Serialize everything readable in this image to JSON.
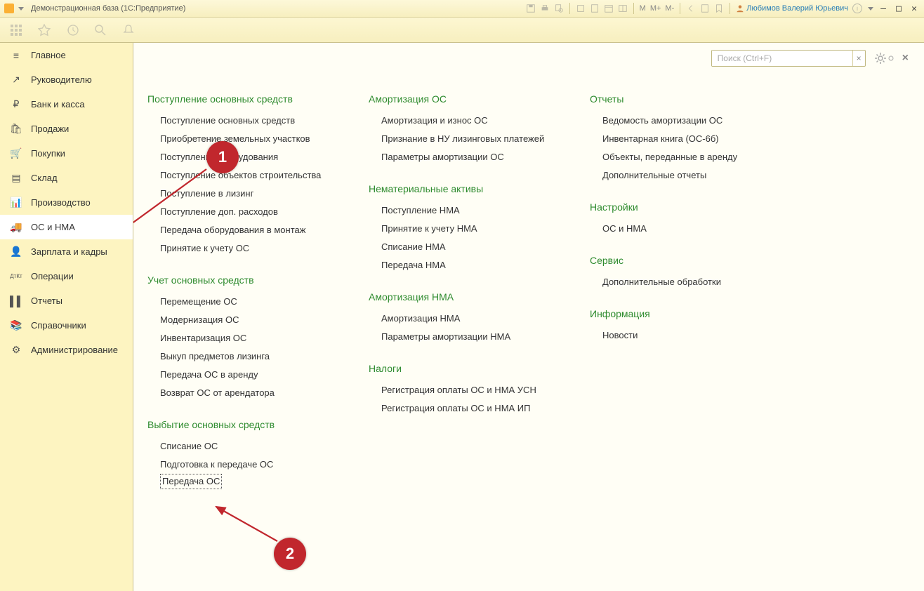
{
  "window": {
    "title": "Демонстрационная база  (1С:Предприятие)",
    "user": "Любимов Валерий Юрьевич",
    "m_items": [
      "M",
      "M+",
      "M-"
    ]
  },
  "toolbar_icons": [
    "grid",
    "star",
    "history",
    "search",
    "bell"
  ],
  "search": {
    "placeholder": "Поиск (Ctrl+F)"
  },
  "sidebar": [
    {
      "icon": "≡",
      "label": "Главное"
    },
    {
      "icon": "↗",
      "label": "Руководителю"
    },
    {
      "icon": "₽",
      "label": "Банк и касса"
    },
    {
      "icon": "🛍",
      "label": "Продажи"
    },
    {
      "icon": "🛒",
      "label": "Покупки"
    },
    {
      "icon": "▤",
      "label": "Склад"
    },
    {
      "icon": "📊",
      "label": "Производство"
    },
    {
      "icon": "🚚",
      "label": "ОС и НМА",
      "active": true
    },
    {
      "icon": "👤",
      "label": "Зарплата и кадры"
    },
    {
      "icon": "ДтКт",
      "label": "Операции"
    },
    {
      "icon": "▌▌",
      "label": "Отчеты"
    },
    {
      "icon": "📚",
      "label": "Справочники"
    },
    {
      "icon": "⚙",
      "label": "Администрирование"
    }
  ],
  "col1": [
    {
      "title": "Поступление основных средств",
      "links": [
        "Поступление основных средств",
        "Приобретение земельных участков",
        "Поступление оборудования",
        "Поступление объектов строительства",
        "Поступление в лизинг",
        "Поступление доп. расходов",
        "Передача оборудования в монтаж",
        "Принятие к учету ОС"
      ]
    },
    {
      "title": "Учет основных средств",
      "links": [
        "Перемещение ОС",
        "Модернизация ОС",
        "Инвентаризация ОС",
        "Выкуп предметов лизинга",
        "Передача ОС в аренду",
        "Возврат ОС от арендатора"
      ]
    },
    {
      "title": "Выбытие основных средств",
      "links": [
        "Списание ОС",
        "Подготовка к передаче ОС",
        "Передача ОС"
      ]
    }
  ],
  "col2": [
    {
      "title": "Амортизация ОС",
      "links": [
        "Амортизация и износ ОС",
        "Признание в НУ лизинговых платежей",
        "Параметры амортизации ОС"
      ]
    },
    {
      "title": "Нематериальные активы",
      "links": [
        "Поступление НМА",
        "Принятие к учету НМА",
        "Списание НМА",
        "Передача НМА"
      ]
    },
    {
      "title": "Амортизация НМА",
      "links": [
        "Амортизация НМА",
        "Параметры амортизации НМА"
      ]
    },
    {
      "title": "Налоги",
      "links": [
        "Регистрация оплаты ОС и НМА УСН",
        "Регистрация оплаты ОС и НМА ИП"
      ]
    }
  ],
  "col3": [
    {
      "title": "Отчеты",
      "links": [
        "Ведомость амортизации ОС",
        "Инвентарная книга (ОС-6б)",
        "Объекты, переданные в аренду",
        "Дополнительные отчеты"
      ]
    },
    {
      "title": "Настройки",
      "links": [
        "ОС и НМА"
      ]
    },
    {
      "title": "Сервис",
      "links": [
        "Дополнительные обработки"
      ]
    },
    {
      "title": "Информация",
      "links": [
        "Новости"
      ]
    }
  ],
  "markers": {
    "m1": "1",
    "m2": "2"
  },
  "colors": {
    "accent_red": "#c1272d",
    "link_green": "#2e8b2e",
    "sidebar_bg": "#fdf4c1"
  }
}
